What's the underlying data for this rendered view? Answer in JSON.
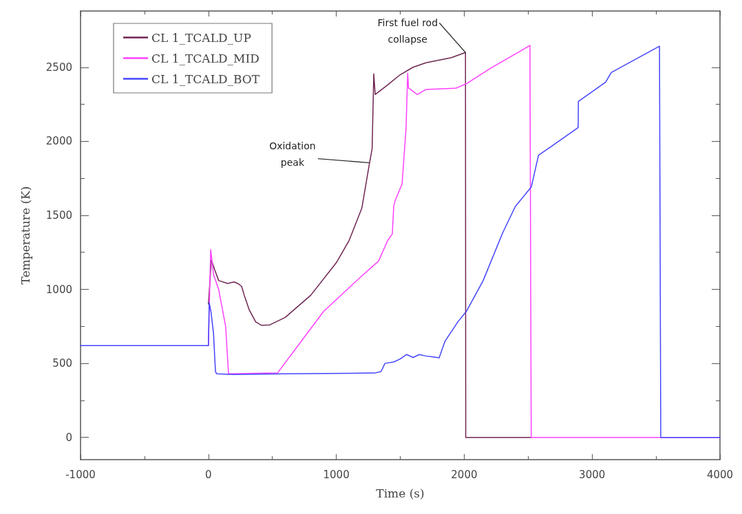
{
  "chart_data": {
    "type": "line",
    "xlabel": "Time (s)",
    "ylabel": "Temperature (K)",
    "xlim": [
      -1000,
      4000
    ],
    "xticks": [
      -1000,
      0,
      1000,
      2000,
      3000,
      4000
    ],
    "ylim": [
      -150,
      2880
    ],
    "yticks": [
      0,
      500,
      1000,
      1500,
      2000,
      2500
    ],
    "grid": false,
    "legend": "top left",
    "marker": "none",
    "line_style": "solid",
    "annotations": [
      {
        "text": "Oxidation peak",
        "x": 1260,
        "y": 1855
      },
      {
        "text": "First fuel rod collapse",
        "x": 2010,
        "y": 2600
      }
    ],
    "series": [
      {
        "name": "CL 1_TCALD_UP",
        "color": "#6e2451",
        "x": [
          0,
          23,
          50,
          80,
          150,
          200,
          230,
          260,
          280,
          320,
          370,
          416,
          480,
          600,
          800,
          1000,
          1100,
          1200,
          1260,
          1280,
          1293,
          1304,
          1400,
          1500,
          1600,
          1700,
          1900,
          2010,
          2012,
          2520
        ],
        "values": [
          900,
          1200,
          1130,
          1060,
          1040,
          1050,
          1040,
          1020,
          960,
          860,
          780,
          757,
          760,
          810,
          960,
          1180,
          1330,
          1550,
          1855,
          1950,
          2456,
          2316,
          2380,
          2450,
          2500,
          2530,
          2565,
          2600,
          0,
          0
        ]
      },
      {
        "name": "CL 1_TCALD_MID",
        "color": "#ff40ff",
        "x": [
          0,
          10,
          18,
          40,
          80,
          135,
          157,
          540,
          722,
          900,
          1131,
          1250,
          1330,
          1401,
          1438,
          1449,
          1460,
          1514,
          1545,
          1558,
          1565,
          1633,
          1700,
          1933,
          2020,
          2200,
          2514,
          2524,
          4000
        ],
        "values": [
          620,
          1000,
          1268,
          1100,
          1000,
          747,
          430,
          435,
          645,
          850,
          1036,
          1130,
          1190,
          1329,
          1375,
          1562,
          1600,
          1711,
          2083,
          2460,
          2360,
          2316,
          2350,
          2358,
          2390,
          2490,
          2647,
          0,
          0
        ]
      },
      {
        "name": "CL 1_TCALD_BOT",
        "color": "#4444ff",
        "x": [
          -1000,
          0,
          6,
          20,
          40,
          55,
          64,
          200,
          600,
          1300,
          1350,
          1380,
          1450,
          1500,
          1550,
          1600,
          1650,
          1700,
          1750,
          1804,
          1850,
          1950,
          2019,
          2148,
          2300,
          2400,
          2525,
          2581,
          2675,
          2891,
          2893,
          3106,
          3150,
          3527,
          3537,
          4000
        ],
        "values": [
          620,
          620,
          910,
          850,
          700,
          445,
          430,
          425,
          430,
          435,
          445,
          500,
          510,
          530,
          560,
          540,
          560,
          550,
          545,
          538,
          650,
          780,
          854,
          1059,
          1380,
          1560,
          1692,
          1906,
          1962,
          2093,
          2269,
          2400,
          2465,
          2642,
          0,
          0
        ]
      }
    ]
  }
}
